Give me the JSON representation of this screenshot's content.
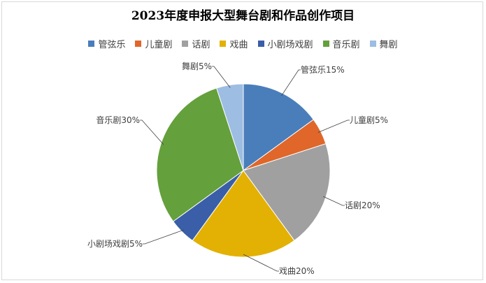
{
  "chart_data": {
    "type": "pie",
    "title": "2023年度申报大型舞台剧和作品创作项目",
    "legend_position": "top",
    "slices": [
      {
        "name": "管弦乐",
        "value": 15,
        "label": "管弦乐15%",
        "color": "#4a7ebb"
      },
      {
        "name": "儿童剧",
        "value": 5,
        "label": "儿童剧5%",
        "color": "#e0662a"
      },
      {
        "name": "话剧",
        "value": 20,
        "label": "话剧20%",
        "color": "#a0a0a0"
      },
      {
        "name": "戏曲",
        "value": 20,
        "label": "戏曲20%",
        "color": "#e3b103"
      },
      {
        "name": "小剧场戏剧",
        "value": 5,
        "label": "小剧场戏剧5%",
        "color": "#3a5ea8"
      },
      {
        "name": "音乐剧",
        "value": 30,
        "label": "音乐剧30%",
        "color": "#64a03c"
      },
      {
        "name": "舞剧",
        "value": 5,
        "label": "舞剧5%",
        "color": "#9dbde2"
      }
    ]
  }
}
